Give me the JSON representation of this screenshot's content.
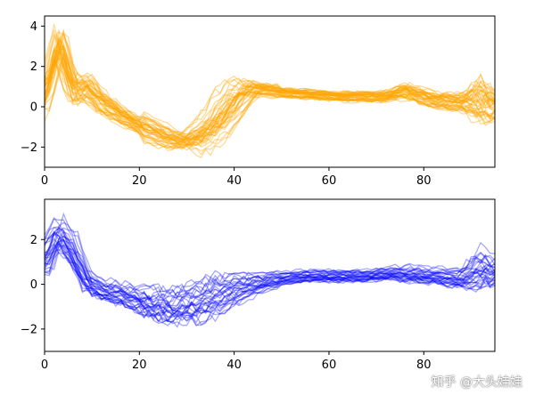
{
  "watermark": "知乎 @大头娃娃",
  "chart_data": [
    {
      "type": "line",
      "title": "",
      "xlabel": "",
      "ylabel": "",
      "xlim": [
        0,
        95
      ],
      "ylim": [
        -3.0,
        4.5
      ],
      "xticks": [
        0,
        20,
        40,
        60,
        80
      ],
      "yticks": [
        -2,
        0,
        2,
        4
      ],
      "color": "#FFA500",
      "line_alpha": 0.4,
      "n_series": 40,
      "x_step": 1,
      "x_points": [
        0,
        3,
        6,
        9,
        12,
        18,
        24,
        30,
        36,
        42,
        46,
        50,
        56,
        62,
        68,
        72,
        76,
        82,
        88,
        92,
        95
      ],
      "y_mean": [
        0.5,
        3.2,
        0.8,
        0.9,
        0.2,
        -0.7,
        -1.4,
        -1.9,
        -0.9,
        0.9,
        0.9,
        0.7,
        0.6,
        0.5,
        0.5,
        0.5,
        0.8,
        0.3,
        0.2,
        0.3,
        0.0
      ],
      "y_spread": [
        1.2,
        1.0,
        0.8,
        0.7,
        0.6,
        0.4,
        0.4,
        0.4,
        0.9,
        0.5,
        0.3,
        0.25,
        0.25,
        0.25,
        0.3,
        0.3,
        0.4,
        0.4,
        0.5,
        1.2,
        0.8
      ]
    },
    {
      "type": "line",
      "title": "",
      "xlabel": "",
      "ylabel": "",
      "xlim": [
        0,
        95
      ],
      "ylim": [
        -3.0,
        3.8
      ],
      "xticks": [
        0,
        20,
        40,
        60,
        80
      ],
      "yticks": [
        -2,
        0,
        2
      ],
      "color": "#0000FF",
      "line_alpha": 0.35,
      "n_series": 30,
      "x_step": 1,
      "x_points": [
        0,
        3,
        6,
        9,
        12,
        18,
        24,
        30,
        36,
        42,
        46,
        50,
        56,
        62,
        68,
        72,
        76,
        82,
        88,
        92,
        95
      ],
      "y_mean": [
        1.2,
        2.4,
        1.6,
        0.2,
        -0.2,
        -0.5,
        -0.9,
        -0.9,
        -0.4,
        0.0,
        0.1,
        0.3,
        0.4,
        0.4,
        0.4,
        0.5,
        0.5,
        0.4,
        0.3,
        0.8,
        0.6
      ],
      "y_spread": [
        0.9,
        0.8,
        0.9,
        0.6,
        0.5,
        0.6,
        0.8,
        0.9,
        0.9,
        0.6,
        0.4,
        0.3,
        0.3,
        0.3,
        0.3,
        0.3,
        0.4,
        0.4,
        0.5,
        1.0,
        0.7
      ]
    }
  ]
}
